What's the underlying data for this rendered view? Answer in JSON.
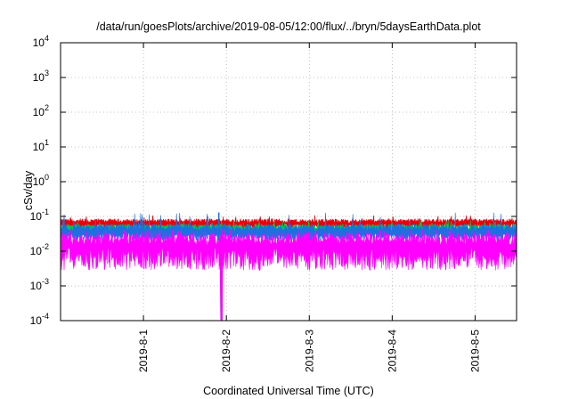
{
  "chart_data": {
    "type": "area",
    "title": "/data/run/goesPlots/archive/2019-08-05/12:00/flux/../bryn/5daysEarthData.plot",
    "xlabel": "Coordinated Universal Time (UTC)",
    "ylabel": "cSv/day",
    "yscale": "log",
    "ylim": [
      0.0001,
      10000
    ],
    "xlim": [
      "2019-07-31T00:00",
      "2019-08-05T12:00"
    ],
    "grid": true,
    "legend": "none",
    "y_ticks": [
      {
        "value": 0.0001,
        "base": "10",
        "exp": "-4"
      },
      {
        "value": 0.001,
        "base": "10",
        "exp": "-3"
      },
      {
        "value": 0.01,
        "base": "10",
        "exp": "-2"
      },
      {
        "value": 0.1,
        "base": "10",
        "exp": "-1"
      },
      {
        "value": 1,
        "base": "10",
        "exp": "0"
      },
      {
        "value": 10,
        "base": "10",
        "exp": "1"
      },
      {
        "value": 100,
        "base": "10",
        "exp": "2"
      },
      {
        "value": 1000,
        "base": "10",
        "exp": "3"
      },
      {
        "value": 10000,
        "base": "10",
        "exp": "4"
      }
    ],
    "x_ticks": [
      {
        "value": "2019-08-01T00:00",
        "label": "2019-8-1"
      },
      {
        "value": "2019-08-02T00:00",
        "label": "2019-8-2"
      },
      {
        "value": "2019-08-03T00:00",
        "label": "2019-8-3"
      },
      {
        "value": "2019-08-04T00:00",
        "label": "2019-8-4"
      },
      {
        "value": "2019-08-05T00:00",
        "label": "2019-8-5"
      }
    ],
    "series_colors": [
      "#e8000b",
      "#00c853",
      "#1f6fe0",
      "#ff00ff"
    ],
    "series": [
      {
        "color": "#e8000b",
        "typical_range": [
          0.045,
          0.085
        ],
        "peak": 0.11
      },
      {
        "color": "#00c853",
        "typical_range": [
          0.03,
          0.06
        ],
        "peak": 0.08
      },
      {
        "color": "#1f6fe0",
        "typical_range": [
          0.02,
          0.06
        ],
        "peak": 0.13
      },
      {
        "color": "#ff00ff",
        "typical_range": [
          0.005,
          0.035
        ],
        "peak": 0.045
      }
    ],
    "dropout": {
      "start": "2019-08-01T22:20",
      "end": "2019-08-01T22:50",
      "value": 0.0001
    }
  }
}
